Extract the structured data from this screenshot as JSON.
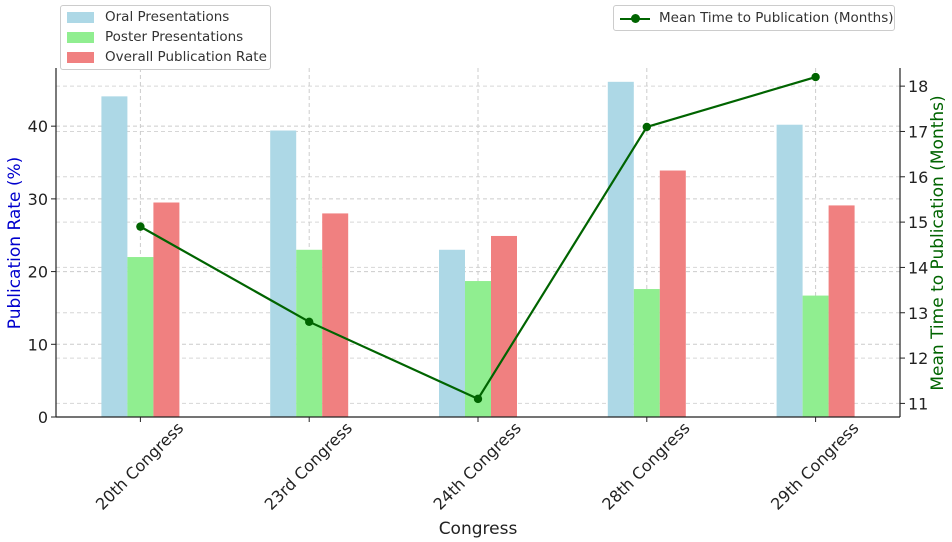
{
  "chart_data": {
    "type": "bar",
    "title": "",
    "categories": [
      "20th Congress",
      "23rd Congress",
      "24th Congress",
      "28th Congress",
      "29th Congress"
    ],
    "xlabel": "Congress",
    "ylabel": "Publication Rate (%)",
    "y2label": "Mean Time to Publication (Months)",
    "ylim": [
      0,
      48
    ],
    "y2lim": [
      10.7,
      18.4
    ],
    "yticks": [
      0,
      10,
      20,
      30,
      40
    ],
    "y2ticks": [
      11,
      12,
      13,
      14,
      15,
      16,
      17,
      18
    ],
    "grid": true,
    "series": [
      {
        "name": "Oral Presentations",
        "color": "#add8e6",
        "axis": "left",
        "kind": "bar",
        "values": [
          44.1,
          39.4,
          23.0,
          46.1,
          40.2
        ]
      },
      {
        "name": "Poster Presentations",
        "color": "#90ee90",
        "axis": "left",
        "kind": "bar",
        "values": [
          22.0,
          23.0,
          18.7,
          17.6,
          16.7
        ]
      },
      {
        "name": "Overall Publication Rate",
        "color": "#f08080",
        "axis": "left",
        "kind": "bar",
        "values": [
          29.5,
          28.0,
          24.9,
          33.9,
          29.1
        ]
      },
      {
        "name": "Mean Time to Publication (Months)",
        "color": "#006400",
        "axis": "right",
        "kind": "line",
        "values": [
          14.9,
          12.8,
          11.1,
          17.1,
          18.2
        ]
      }
    ],
    "legend_left_position": "upper-left",
    "legend_right_position": "upper-right"
  }
}
